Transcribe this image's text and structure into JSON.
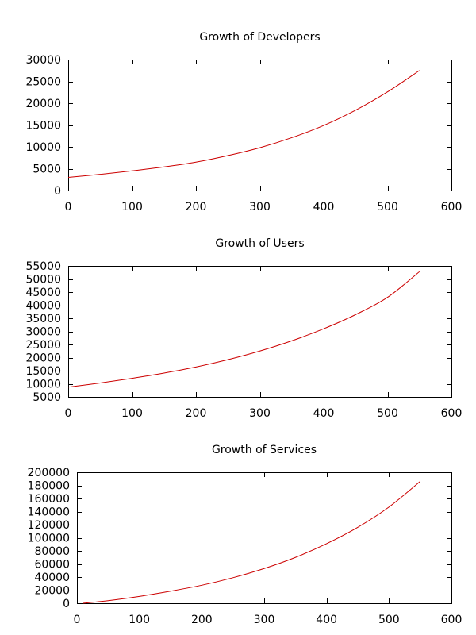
{
  "chart_data": [
    {
      "type": "line",
      "title": "Growth of Developers",
      "xlabel": "",
      "ylabel": "",
      "xlim": [
        0,
        600
      ],
      "ylim": [
        0,
        30000
      ],
      "xticks": [
        0,
        100,
        200,
        300,
        400,
        500,
        600
      ],
      "yticks": [
        0,
        5000,
        10000,
        15000,
        20000,
        25000,
        30000
      ],
      "series": [
        {
          "color": "#cc0000",
          "x": [
            0,
            50,
            100,
            150,
            200,
            250,
            300,
            350,
            400,
            450,
            500,
            550
          ],
          "y": [
            3000,
            3700,
            4500,
            5400,
            6500,
            8000,
            9800,
            12100,
            14900,
            18400,
            22600,
            27500
          ]
        }
      ]
    },
    {
      "type": "line",
      "title": "Growth of Users",
      "xlabel": "",
      "ylabel": "",
      "xlim": [
        0,
        600
      ],
      "ylim": [
        5000,
        55000
      ],
      "xticks": [
        0,
        100,
        200,
        300,
        400,
        500,
        600
      ],
      "yticks": [
        5000,
        10000,
        15000,
        20000,
        25000,
        30000,
        35000,
        40000,
        45000,
        50000,
        55000
      ],
      "series": [
        {
          "color": "#cc0000",
          "x": [
            0,
            50,
            100,
            150,
            200,
            250,
            300,
            350,
            400,
            450,
            500,
            550
          ],
          "y": [
            8700,
            10300,
            12100,
            14100,
            16400,
            19200,
            22500,
            26400,
            31000,
            36400,
            43000,
            52800
          ]
        }
      ]
    },
    {
      "type": "line",
      "title": "Growth of Services",
      "xlabel": "",
      "ylabel": "",
      "xlim": [
        0,
        600
      ],
      "ylim": [
        0,
        200000
      ],
      "xticks": [
        0,
        100,
        200,
        300,
        400,
        500,
        600
      ],
      "yticks": [
        0,
        20000,
        40000,
        60000,
        80000,
        100000,
        120000,
        140000,
        160000,
        180000,
        200000
      ],
      "series": [
        {
          "color": "#cc0000",
          "x": [
            10,
            50,
            100,
            150,
            200,
            250,
            300,
            350,
            400,
            450,
            500,
            550
          ],
          "y": [
            0,
            4000,
            10500,
            18500,
            27500,
            39000,
            53000,
            70000,
            91000,
            116000,
            147000,
            186000
          ]
        }
      ]
    }
  ]
}
